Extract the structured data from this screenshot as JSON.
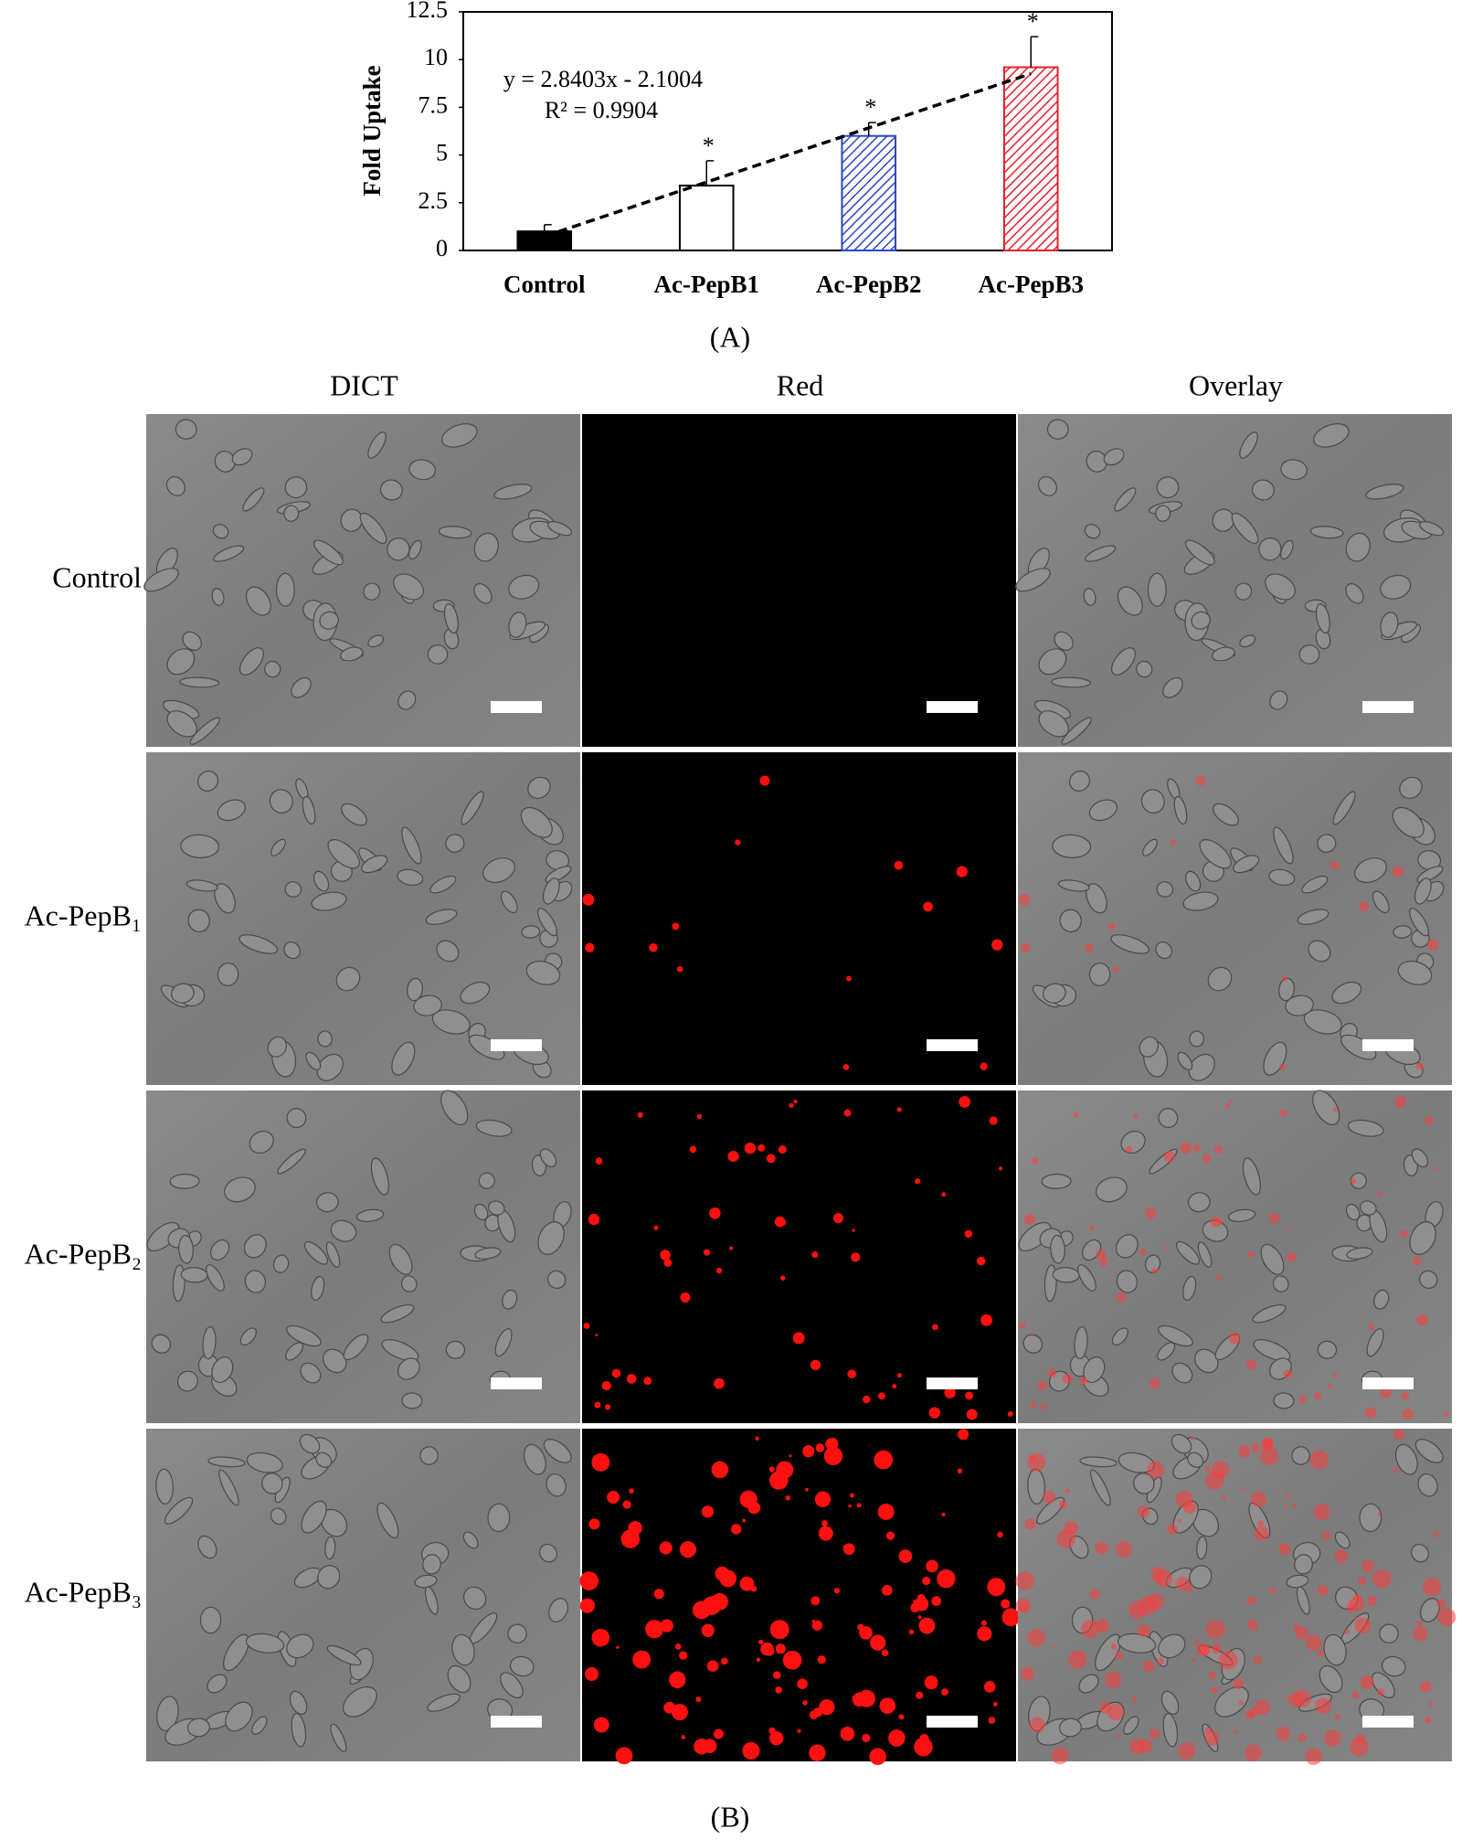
{
  "chart_data": {
    "type": "bar",
    "ylabel": "Fold Uptake",
    "categories": [
      "Control",
      "Ac-PepB1",
      "Ac-PepB2",
      "Ac-PepB3"
    ],
    "values": [
      1.0,
      3.4,
      6.0,
      9.6
    ],
    "errors": [
      0.35,
      1.3,
      0.7,
      1.6
    ],
    "colors": [
      "#000000",
      "#000000",
      "#2a46c8",
      "#e3202a"
    ],
    "fill": [
      "solid",
      "none",
      "hatch",
      "hatch"
    ],
    "significance": [
      null,
      "*",
      "*",
      "*"
    ],
    "ylim": [
      0,
      12.5
    ],
    "yticks": [
      0,
      2.5,
      5,
      7.5,
      10,
      12.5
    ],
    "trendline": {
      "slope": 2.8403,
      "intercept": -2.1004
    },
    "annotations": [
      "y = 2.8403x - 2.1004",
      "R² = 0.9904"
    ],
    "caption": "(A)"
  },
  "figure_b": {
    "columns": [
      "DICT",
      "Red",
      "Overlay"
    ],
    "rows": [
      "Control",
      "Ac-PepB₁",
      "Ac-PepB₂",
      "Ac-PepB₃"
    ],
    "caption": "(B)"
  }
}
